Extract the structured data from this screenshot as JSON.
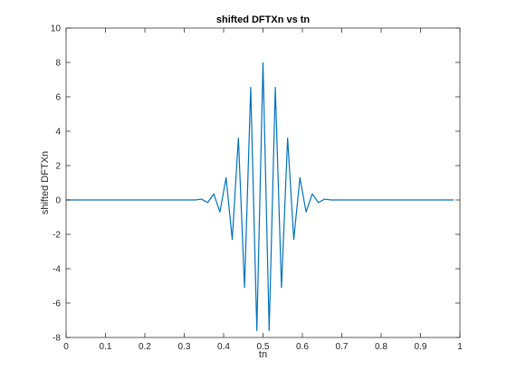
{
  "chart_data": {
    "type": "line",
    "title": "shifted DFTXn vs tn",
    "xlabel": "tn",
    "ylabel": "shifted DFTXn",
    "xlim": [
      0,
      1
    ],
    "ylim": [
      -8,
      10
    ],
    "xticks": [
      0,
      0.1,
      0.2,
      0.3,
      0.4,
      0.5,
      0.6,
      0.7,
      0.8,
      0.9,
      1
    ],
    "xtick_labels": [
      "0",
      "0.1",
      "0.2",
      "0.3",
      "0.4",
      "0.5",
      "0.6",
      "0.7",
      "0.8",
      "0.9",
      "1"
    ],
    "yticks": [
      -8,
      -6,
      -4,
      -2,
      0,
      2,
      4,
      6,
      8,
      10
    ],
    "ytick_labels": [
      "-8",
      "-6",
      "-4",
      "-2",
      "0",
      "2",
      "4",
      "6",
      "8",
      "10"
    ],
    "grid": false,
    "box": true,
    "series": [
      {
        "color": "#0072BD",
        "x": [
          0,
          0.3125,
          0.328125,
          0.34375,
          0.359375,
          0.375,
          0.390625,
          0.40625,
          0.421875,
          0.4375,
          0.453125,
          0.46875,
          0.484375,
          0.5,
          0.515625,
          0.53125,
          0.546875,
          0.5625,
          0.578125,
          0.59375,
          0.609375,
          0.625,
          0.640625,
          0.65625,
          0.671875,
          0.6875,
          0.984375
        ],
        "y": [
          0,
          0,
          0,
          0.05,
          -0.15,
          0.35,
          -0.7,
          1.3,
          -2.3,
          3.6,
          -5.1,
          6.55,
          -7.6,
          7.98,
          -7.6,
          6.55,
          -5.1,
          3.6,
          -2.3,
          1.3,
          -0.7,
          0.35,
          -0.15,
          0.05,
          0,
          0,
          0
        ]
      }
    ]
  }
}
